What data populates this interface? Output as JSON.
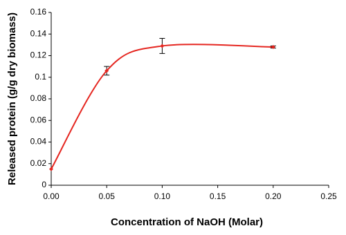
{
  "chart_data": {
    "type": "line",
    "x_label": "Concentration of NaOH (Molar)",
    "y_label": "Released protein (g/g dry biomass)",
    "x": [
      0,
      0.05,
      0.1,
      0.2
    ],
    "values": [
      0.015,
      0.106,
      0.129,
      0.128
    ],
    "errors": [
      0,
      0.004,
      0.007,
      0.001
    ],
    "color": "#e52620",
    "smooth": true,
    "grid": false,
    "xlim": [
      0,
      0.25
    ],
    "xticks": [
      {
        "value": 0,
        "label": "0.00"
      },
      {
        "value": 0.05,
        "label": "0.05"
      },
      {
        "value": 0.1,
        "label": "0.10"
      },
      {
        "value": 0.15,
        "label": "0.15"
      },
      {
        "value": 0.2,
        "label": "0.20"
      },
      {
        "value": 0.25,
        "label": "0.25"
      }
    ],
    "ylim": [
      0,
      0.16
    ],
    "yticks": [
      0,
      0.02,
      0.04,
      0.06,
      0.08,
      0.1,
      0.12,
      0.14,
      0.16
    ]
  }
}
